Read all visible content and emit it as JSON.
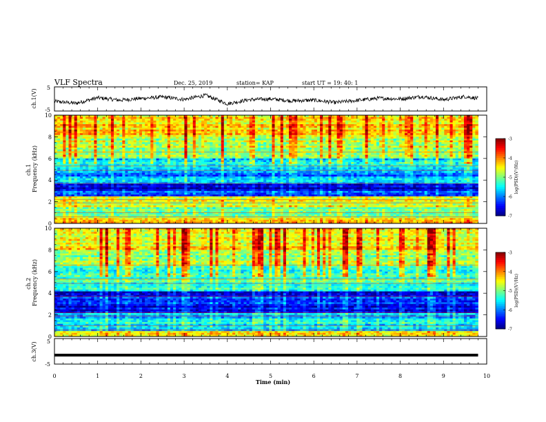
{
  "header": {
    "title": "VLF Spectra",
    "date": "Dec. 25, 2019",
    "station": "station= KAP",
    "start": "start  UT =   19: 40: 1"
  },
  "chart_data": [
    {
      "type": "line",
      "panel": "ch1-waveform",
      "ylabel": "ch.1(V)",
      "ylim": [
        -5,
        5
      ],
      "yticks": [
        "5",
        "-5"
      ],
      "xlim": [
        0,
        10
      ],
      "x": [
        0,
        0.5,
        1,
        1.5,
        2,
        2.5,
        3,
        3.5,
        4,
        4.5,
        5,
        5.5,
        6,
        6.5,
        7,
        7.5,
        8,
        8.5,
        9,
        9.5,
        9.8
      ],
      "y": [
        -1.0,
        -1.8,
        0.5,
        -0.5,
        0.2,
        0.8,
        -0.2,
        1.5,
        -2.0,
        -0.3,
        0.0,
        -0.8,
        -0.5,
        -1.5,
        -0.6,
        0.3,
        0.0,
        1.0,
        -0.3,
        1.0,
        0.2
      ],
      "color": "#000000"
    },
    {
      "type": "heatmap",
      "panel": "ch1-spectrogram",
      "ylabel": "ch.1\nFrequency (kHz)",
      "ylim": [
        0,
        10
      ],
      "yticks": [
        "0",
        "2",
        "4",
        "6",
        "8",
        "10"
      ],
      "xlim": [
        0,
        10
      ],
      "data_until_min": 9.8,
      "colorbar": {
        "label": "log(PSD)(V²/Hz)",
        "range": [
          -7,
          -3
        ],
        "ticks": [
          "-3",
          "-4",
          "-5",
          "-6",
          "-7"
        ]
      },
      "band_profile": [
        {
          "f": [
            0,
            0.5
          ],
          "level": -4.3
        },
        {
          "f": [
            0.5,
            1.5
          ],
          "level": -5.1
        },
        {
          "f": [
            1.5,
            2.5
          ],
          "level": -4.7
        },
        {
          "f": [
            2.5,
            3.0
          ],
          "level": -6.2
        },
        {
          "f": [
            3.0,
            3.6
          ],
          "level": -6.7
        },
        {
          "f": [
            3.6,
            4.2
          ],
          "level": -5.8
        },
        {
          "f": [
            4.2,
            5.0
          ],
          "level": -6.0
        },
        {
          "f": [
            5.0,
            6.0
          ],
          "level": -5.6
        },
        {
          "f": [
            6.0,
            8.0
          ],
          "level": -4.8
        },
        {
          "f": [
            8.0,
            10.0
          ],
          "level": -4.4
        }
      ]
    },
    {
      "type": "heatmap",
      "panel": "ch2-spectrogram",
      "ylabel": "ch.2\nFrequency (kHz)",
      "ylim": [
        0,
        10
      ],
      "yticks": [
        "0",
        "2",
        "4",
        "6",
        "8",
        "10"
      ],
      "xlim": [
        0,
        10
      ],
      "data_until_min": 9.8,
      "colorbar": {
        "label": "log(PSD)(V²/Hz)",
        "range": [
          -7,
          -3
        ],
        "ticks": [
          "-3",
          "-4",
          "-5",
          "-6",
          "-7"
        ]
      },
      "band_profile": [
        {
          "f": [
            0,
            0.5
          ],
          "level": -4.6
        },
        {
          "f": [
            0.5,
            1.5
          ],
          "level": -5.6
        },
        {
          "f": [
            1.5,
            2.2
          ],
          "level": -5.8
        },
        {
          "f": [
            2.2,
            3.0
          ],
          "level": -6.6
        },
        {
          "f": [
            3.0,
            3.6
          ],
          "level": -6.2
        },
        {
          "f": [
            3.6,
            4.2
          ],
          "level": -6.6
        },
        {
          "f": [
            4.2,
            5.0
          ],
          "level": -5.4
        },
        {
          "f": [
            5.0,
            6.5
          ],
          "level": -5.3
        },
        {
          "f": [
            6.5,
            8.0
          ],
          "level": -4.9
        },
        {
          "f": [
            8.0,
            10.0
          ],
          "level": -4.5
        }
      ]
    },
    {
      "type": "line",
      "panel": "ch3-waveform",
      "ylabel": "ch.3(V)",
      "ylim": [
        -5,
        5
      ],
      "yticks": [
        "5",
        "-5"
      ],
      "xlim": [
        0,
        10
      ],
      "x": [
        0,
        9.8
      ],
      "y": [
        -1.5,
        -1.5
      ],
      "color": "#000000"
    }
  ],
  "xaxis": {
    "label": "Time (min)",
    "ticks": [
      "0",
      "1",
      "2",
      "3",
      "4",
      "5",
      "6",
      "7",
      "8",
      "9",
      "10"
    ],
    "range": [
      0,
      10
    ]
  },
  "colors": {
    "colormap": [
      "#00007f",
      "#0000ff",
      "#007fff",
      "#00ffff",
      "#7fff7f",
      "#ffff00",
      "#ff7f00",
      "#ff0000",
      "#7f0000"
    ],
    "trace": "#000000"
  }
}
